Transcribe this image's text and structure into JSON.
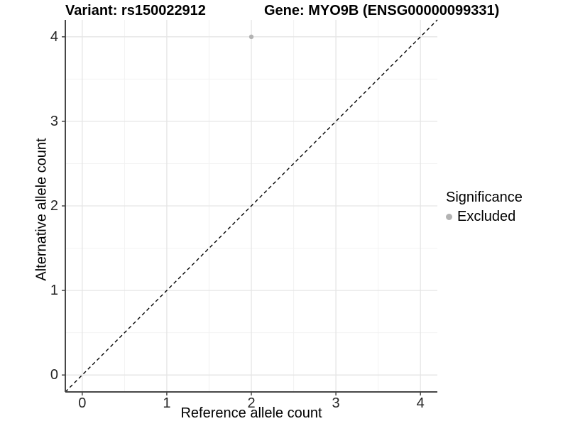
{
  "title": {
    "left": "Variant: rs150022912",
    "right": "Gene: MYO9B (ENSG00000099331)"
  },
  "chart_data": {
    "type": "scatter",
    "xlabel": "Reference allele count",
    "ylabel": "Alternative allele count",
    "xlim": [
      -0.2,
      4.2
    ],
    "ylim": [
      -0.2,
      4.2
    ],
    "x_ticks": [
      0,
      1,
      2,
      3,
      4
    ],
    "y_ticks": [
      0,
      1,
      2,
      3,
      4
    ],
    "x_minor_ticks": [
      0.5,
      1.5,
      2.5,
      3.5
    ],
    "y_minor_ticks": [
      0.5,
      1.5,
      2.5,
      3.5
    ],
    "grid": "major and minor, light gray on white",
    "identity_line": {
      "style": "dashed",
      "from": [
        -0.2,
        -0.2
      ],
      "to": [
        4.2,
        4.2
      ],
      "color": "#000000"
    },
    "series": [
      {
        "name": "Excluded",
        "color": "#b3b3b3",
        "points": [
          {
            "x": 2,
            "y": 4
          }
        ]
      }
    ],
    "legend": {
      "title": "Significance",
      "position": "right",
      "items": [
        {
          "label": "Excluded",
          "color": "#b3b3b3"
        }
      ]
    }
  },
  "style": {
    "grid_major_color": "#e5e5e5",
    "grid_minor_color": "#f2f2f2",
    "axis_line_color": "#474747",
    "tick_mark_color": "#474747",
    "point_color": "#b3b3b3",
    "dashed_line_color": "#000000"
  }
}
